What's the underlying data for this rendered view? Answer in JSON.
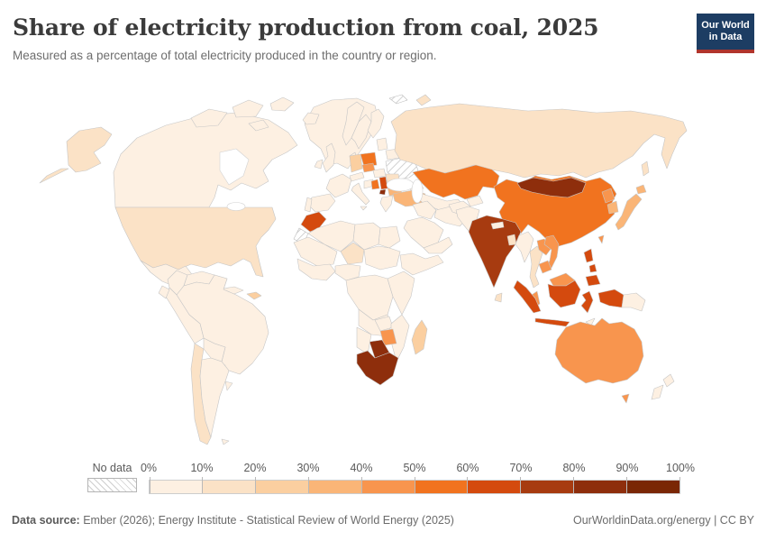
{
  "header": {
    "title": "Share of electricity production from coal, 2025",
    "subtitle": "Measured as a percentage of total electricity produced in the country or region.",
    "logo": {
      "line1": "Our World",
      "line2": "in Data",
      "bg_color": "#1d3d63",
      "accent_color": "#b1352c"
    }
  },
  "legend": {
    "no_data_label": "No data",
    "tick_labels": [
      "0%",
      "10%",
      "20%",
      "30%",
      "40%",
      "50%",
      "60%",
      "70%",
      "80%",
      "90%",
      "100%"
    ]
  },
  "footer": {
    "source_label": "Data source:",
    "source_text": " Ember (2026); Energy Institute - Statistical Review of World Energy (2025)",
    "rights_text": "OurWorldinData.org/energy | CC BY"
  },
  "chart_data": {
    "type": "choropleth_map",
    "title": "Share of electricity production from coal, 2025",
    "unit": "% of total electricity produced",
    "year": 2025,
    "color_scale": {
      "bins": [
        "0-10%",
        "10-20%",
        "20-30%",
        "30-40%",
        "40-50%",
        "50-60%",
        "60-70%",
        "70-80%",
        "80-90%",
        "90-100%"
      ],
      "colors": [
        "#fdf0e2",
        "#fbe2c6",
        "#fbcfa0",
        "#fab577",
        "#f8954e",
        "#f1731f",
        "#d44a0e",
        "#a73b10",
        "#8e2e0c",
        "#7a2705"
      ]
    },
    "default_value": 2,
    "no_data_regions": [
      "Ukraine",
      "Western Sahara",
      "Svalbard"
    ],
    "regions": [
      {
        "name": "United States",
        "value": 16
      },
      {
        "name": "Canada",
        "value": 4
      },
      {
        "name": "Greenland",
        "value": 2
      },
      {
        "name": "Mexico",
        "value": 3
      },
      {
        "name": "Guatemala",
        "value": 32
      },
      {
        "name": "Cuba",
        "value": 2
      },
      {
        "name": "Dominican Republic",
        "value": 25
      },
      {
        "name": "Colombia",
        "value": 6
      },
      {
        "name": "Venezuela",
        "value": 2
      },
      {
        "name": "Guyana",
        "value": 2
      },
      {
        "name": "Ecuador",
        "value": 1
      },
      {
        "name": "Peru",
        "value": 1
      },
      {
        "name": "Brazil",
        "value": 3
      },
      {
        "name": "Bolivia",
        "value": 2
      },
      {
        "name": "Paraguay",
        "value": 0
      },
      {
        "name": "Chile",
        "value": 17
      },
      {
        "name": "Argentina",
        "value": 2
      },
      {
        "name": "Uruguay",
        "value": 1
      },
      {
        "name": "Iceland",
        "value": 0
      },
      {
        "name": "United Kingdom",
        "value": 2
      },
      {
        "name": "Ireland",
        "value": 3
      },
      {
        "name": "Norway",
        "value": 0
      },
      {
        "name": "Sweden",
        "value": 1
      },
      {
        "name": "Finland",
        "value": 4
      },
      {
        "name": "Denmark",
        "value": 9
      },
      {
        "name": "Germany",
        "value": 22
      },
      {
        "name": "France",
        "value": 1
      },
      {
        "name": "Spain",
        "value": 1
      },
      {
        "name": "Portugal",
        "value": 1
      },
      {
        "name": "Italy",
        "value": 4
      },
      {
        "name": "Austria",
        "value": 4
      },
      {
        "name": "Czechia",
        "value": 41
      },
      {
        "name": "Poland",
        "value": 57
      },
      {
        "name": "Hungary",
        "value": 7
      },
      {
        "name": "Croatia",
        "value": 9
      },
      {
        "name": "Bosnia and Herzegovina",
        "value": 58
      },
      {
        "name": "Serbia",
        "value": 62
      },
      {
        "name": "Kosovo",
        "value": 88
      },
      {
        "name": "Romania",
        "value": 12
      },
      {
        "name": "Bulgaria",
        "value": 30
      },
      {
        "name": "Greece",
        "value": 5
      },
      {
        "name": "Belarus",
        "value": 1
      },
      {
        "name": "Lithuania",
        "value": 2
      },
      {
        "name": "Turkey",
        "value": 35
      },
      {
        "name": "Georgia",
        "value": 1
      },
      {
        "name": "Russia",
        "value": 16
      },
      {
        "name": "Kazakhstan",
        "value": 57
      },
      {
        "name": "Uzbekistan",
        "value": 4
      },
      {
        "name": "Kyrgyzstan",
        "value": 4
      },
      {
        "name": "Iran",
        "value": 0
      },
      {
        "name": "Iraq",
        "value": 1
      },
      {
        "name": "Saudi Arabia",
        "value": 0
      },
      {
        "name": "Yemen",
        "value": 0
      },
      {
        "name": "Afghanistan",
        "value": 0
      },
      {
        "name": "Pakistan",
        "value": 9
      },
      {
        "name": "India",
        "value": 74
      },
      {
        "name": "Nepal",
        "value": 1
      },
      {
        "name": "Bangladesh",
        "value": 11
      },
      {
        "name": "Sri Lanka",
        "value": 11
      },
      {
        "name": "Myanmar",
        "value": 5
      },
      {
        "name": "Thailand",
        "value": 15
      },
      {
        "name": "Laos",
        "value": 45
      },
      {
        "name": "Vietnam",
        "value": 47
      },
      {
        "name": "Cambodia",
        "value": 40
      },
      {
        "name": "Malaysia",
        "value": 43
      },
      {
        "name": "Indonesia",
        "value": 62
      },
      {
        "name": "Philippines",
        "value": 62
      },
      {
        "name": "China",
        "value": 58
      },
      {
        "name": "Mongolia",
        "value": 81
      },
      {
        "name": "North Korea",
        "value": 45
      },
      {
        "name": "South Korea",
        "value": 30
      },
      {
        "name": "Japan",
        "value": 32
      },
      {
        "name": "Taiwan",
        "value": 45
      },
      {
        "name": "Morocco",
        "value": 62
      },
      {
        "name": "Algeria",
        "value": 0
      },
      {
        "name": "Libya",
        "value": 0
      },
      {
        "name": "Egypt",
        "value": 0
      },
      {
        "name": "Mauritania",
        "value": 0
      },
      {
        "name": "Niger",
        "value": 18
      },
      {
        "name": "Sudan",
        "value": 0
      },
      {
        "name": "Senegal",
        "value": 2
      },
      {
        "name": "Nigeria",
        "value": 0
      },
      {
        "name": "Ethiopia",
        "value": 0
      },
      {
        "name": "Democratic Republic of Congo",
        "value": 0
      },
      {
        "name": "Kenya",
        "value": 1
      },
      {
        "name": "Angola",
        "value": 0
      },
      {
        "name": "Zambia",
        "value": 8
      },
      {
        "name": "Mozambique",
        "value": 0
      },
      {
        "name": "Zimbabwe",
        "value": 47
      },
      {
        "name": "Botswana",
        "value": 84
      },
      {
        "name": "Namibia",
        "value": 0
      },
      {
        "name": "South Africa",
        "value": 84
      },
      {
        "name": "Madagascar",
        "value": 25
      },
      {
        "name": "Australia",
        "value": 45
      },
      {
        "name": "New Zealand",
        "value": 7
      },
      {
        "name": "Papua New Guinea",
        "value": 1
      }
    ]
  }
}
